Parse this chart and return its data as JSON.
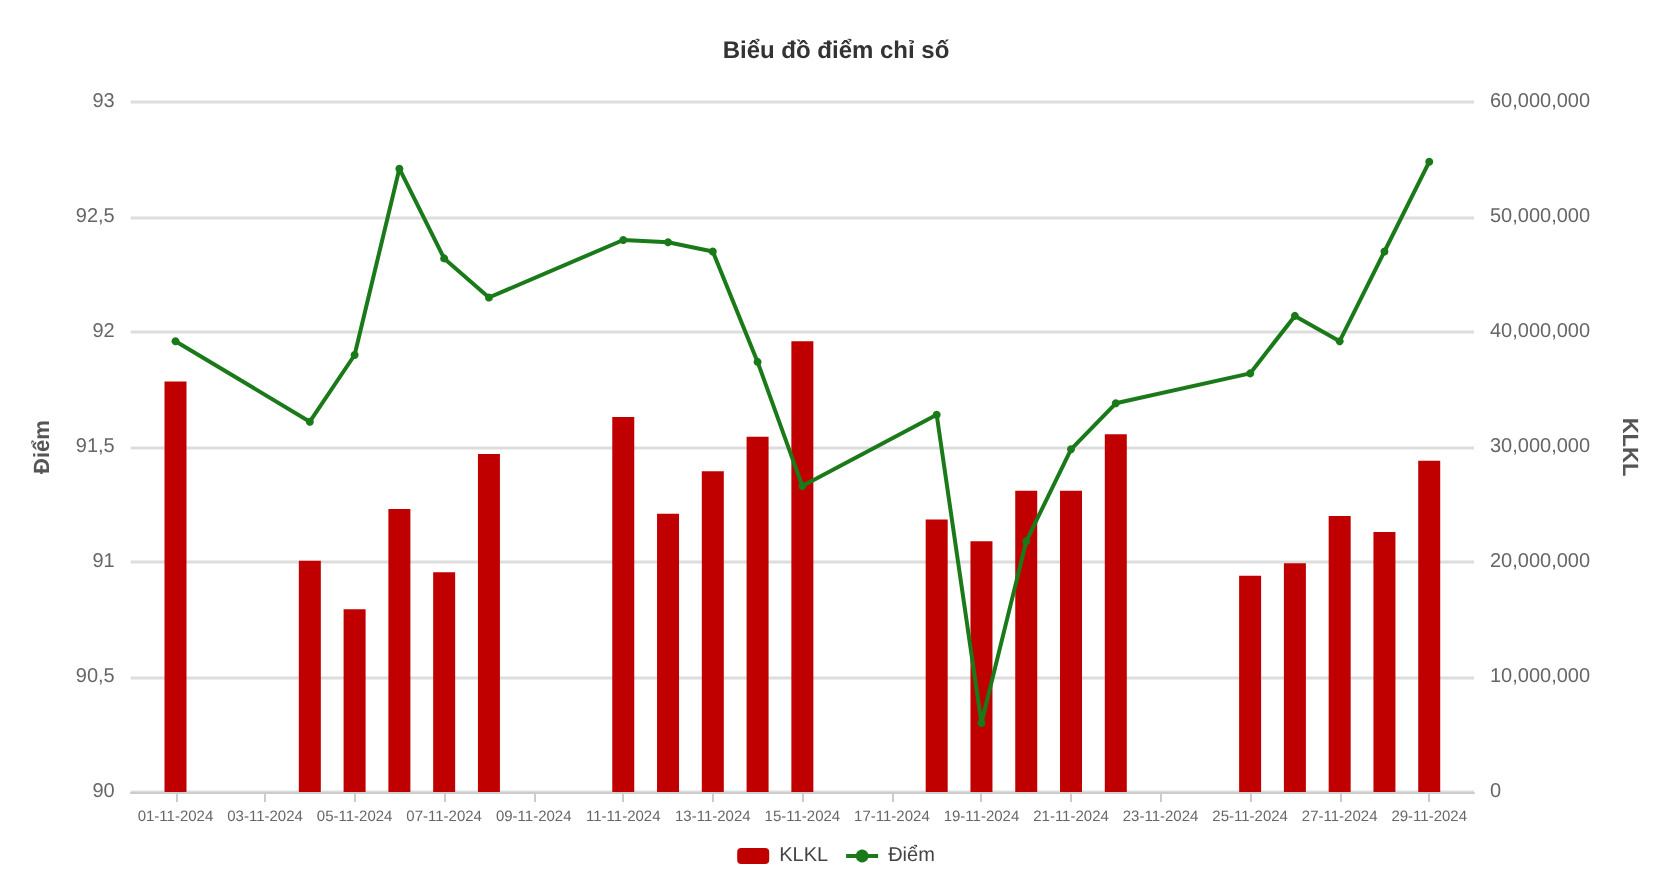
{
  "chart_data": {
    "type": "bar",
    "title": "Biểu đồ điểm chỉ số",
    "ylabel": "Điểm",
    "y2label": "KLKL",
    "x": [
      "2024-11-01",
      "2024-11-04",
      "2024-11-05",
      "2024-11-06",
      "2024-11-07",
      "2024-11-08",
      "2024-11-11",
      "2024-11-12",
      "2024-11-13",
      "2024-11-14",
      "2024-11-15",
      "2024-11-18",
      "2024-11-19",
      "2024-11-20",
      "2024-11-21",
      "2024-11-22",
      "2024-11-25",
      "2024-11-26",
      "2024-11-27",
      "2024-11-28",
      "2024-11-29"
    ],
    "series": [
      {
        "name": "KLKL",
        "axis": "y2",
        "color": "#c00000",
        "values": [
          35700000,
          20100000,
          15900000,
          24600000,
          19100000,
          29400000,
          32600000,
          24200000,
          27900000,
          30900000,
          39200000,
          23700000,
          21800000,
          26200000,
          26200000,
          31100000,
          18800000,
          19900000,
          24000000,
          22600000,
          28800000
        ]
      },
      {
        "name": "Điểm",
        "type": "line",
        "axis": "y",
        "color": "#1a7a1a",
        "marker": "circle",
        "values": [
          91.96,
          91.61,
          91.9,
          92.71,
          92.32,
          92.15,
          92.4,
          92.39,
          92.35,
          91.87,
          91.33,
          91.64,
          90.3,
          91.09,
          91.49,
          91.69,
          91.82,
          92.07,
          91.96,
          92.35,
          92.74
        ]
      }
    ],
    "xlim": [
      "2024-10-31",
      "2024-11-30"
    ],
    "xticks": [
      {
        "value": "2024-11-01",
        "label": "01-11-2024"
      },
      {
        "value": "2024-11-03",
        "label": "03-11-2024"
      },
      {
        "value": "2024-11-05",
        "label": "05-11-2024"
      },
      {
        "value": "2024-11-07",
        "label": "07-11-2024"
      },
      {
        "value": "2024-11-09",
        "label": "09-11-2024"
      },
      {
        "value": "2024-11-11",
        "label": "11-11-2024"
      },
      {
        "value": "2024-11-13",
        "label": "13-11-2024"
      },
      {
        "value": "2024-11-15",
        "label": "15-11-2024"
      },
      {
        "value": "2024-11-17",
        "label": "17-11-2024"
      },
      {
        "value": "2024-11-19",
        "label": "19-11-2024"
      },
      {
        "value": "2024-11-21",
        "label": "21-11-2024"
      },
      {
        "value": "2024-11-23",
        "label": "23-11-2024"
      },
      {
        "value": "2024-11-25",
        "label": "25-11-2024"
      },
      {
        "value": "2024-11-27",
        "label": "27-11-2024"
      },
      {
        "value": "2024-11-29",
        "label": "29-11-2024"
      }
    ],
    "ylim": [
      90,
      93
    ],
    "yticks": [
      90,
      {
        "value": 90.5,
        "label": "90,5"
      },
      91,
      {
        "value": 91.5,
        "label": "91,5"
      },
      92,
      {
        "value": 92.5,
        "label": "92,5"
      },
      93
    ],
    "y2lim": [
      0,
      60000000
    ],
    "y2ticks": [
      0,
      {
        "value": 10000000,
        "label": "10,000,000"
      },
      {
        "value": 20000000,
        "label": "20,000,000"
      },
      {
        "value": 30000000,
        "label": "30,000,000"
      },
      {
        "value": 40000000,
        "label": "40,000,000"
      },
      {
        "value": 50000000,
        "label": "50,000,000"
      },
      {
        "value": 60000000,
        "label": "60,000,000"
      }
    ],
    "grid": "y",
    "legend": "bottom"
  }
}
